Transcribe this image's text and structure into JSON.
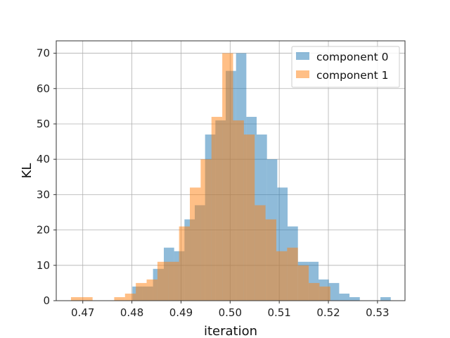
{
  "chart_data": {
    "type": "bar",
    "subtype": "overlaid-histogram",
    "xlabel": "iteration",
    "ylabel": "KL",
    "xlim": [
      0.4646,
      0.5356
    ],
    "ylim": [
      0,
      73.5
    ],
    "xticks": [
      0.47,
      0.48,
      0.49,
      0.5,
      0.51,
      0.52,
      0.53
    ],
    "xtick_labels": [
      "0.47",
      "0.48",
      "0.49",
      "0.50",
      "0.51",
      "0.52",
      "0.53"
    ],
    "yticks": [
      0,
      10,
      20,
      30,
      40,
      50,
      60,
      70
    ],
    "ytick_labels": [
      "0",
      "10",
      "20",
      "30",
      "40",
      "50",
      "60",
      "70"
    ],
    "grid": true,
    "legend_position": "upper right",
    "series": [
      {
        "name": "component 0",
        "color": "#1f77b4",
        "alpha": 0.5,
        "bin_edges": [
          0.4801,
          0.4822,
          0.4843,
          0.4865,
          0.4886,
          0.4907,
          0.4928,
          0.4949,
          0.497,
          0.4991,
          0.5012,
          0.5033,
          0.5054,
          0.5075,
          0.5096,
          0.5117,
          0.5138,
          0.5159,
          0.518,
          0.5201,
          0.5222,
          0.5243,
          0.5264,
          0.5285,
          0.5306,
          0.5327
        ],
        "counts": [
          4,
          4,
          9,
          15,
          14,
          23,
          27,
          47,
          51,
          65,
          70,
          52,
          47,
          40,
          32,
          21,
          11,
          11,
          6,
          5,
          2,
          1,
          0,
          0,
          1
        ]
      },
      {
        "name": "component 1",
        "color": "#ff7f0e",
        "alpha": 0.5,
        "bin_edges": [
          0.4676,
          0.4698,
          0.472,
          0.4742,
          0.4764,
          0.4786,
          0.4808,
          0.483,
          0.4852,
          0.4874,
          0.4896,
          0.4918,
          0.494,
          0.4962,
          0.4984,
          0.5006,
          0.5028,
          0.505,
          0.5072,
          0.5094,
          0.5116,
          0.5138,
          0.516,
          0.5182,
          0.5204
        ],
        "counts": [
          1,
          1,
          0,
          0,
          1,
          2,
          5,
          6,
          11,
          11,
          21,
          32,
          40,
          52,
          70,
          51,
          47,
          27,
          23,
          14,
          15,
          10,
          5,
          4
        ]
      }
    ]
  }
}
